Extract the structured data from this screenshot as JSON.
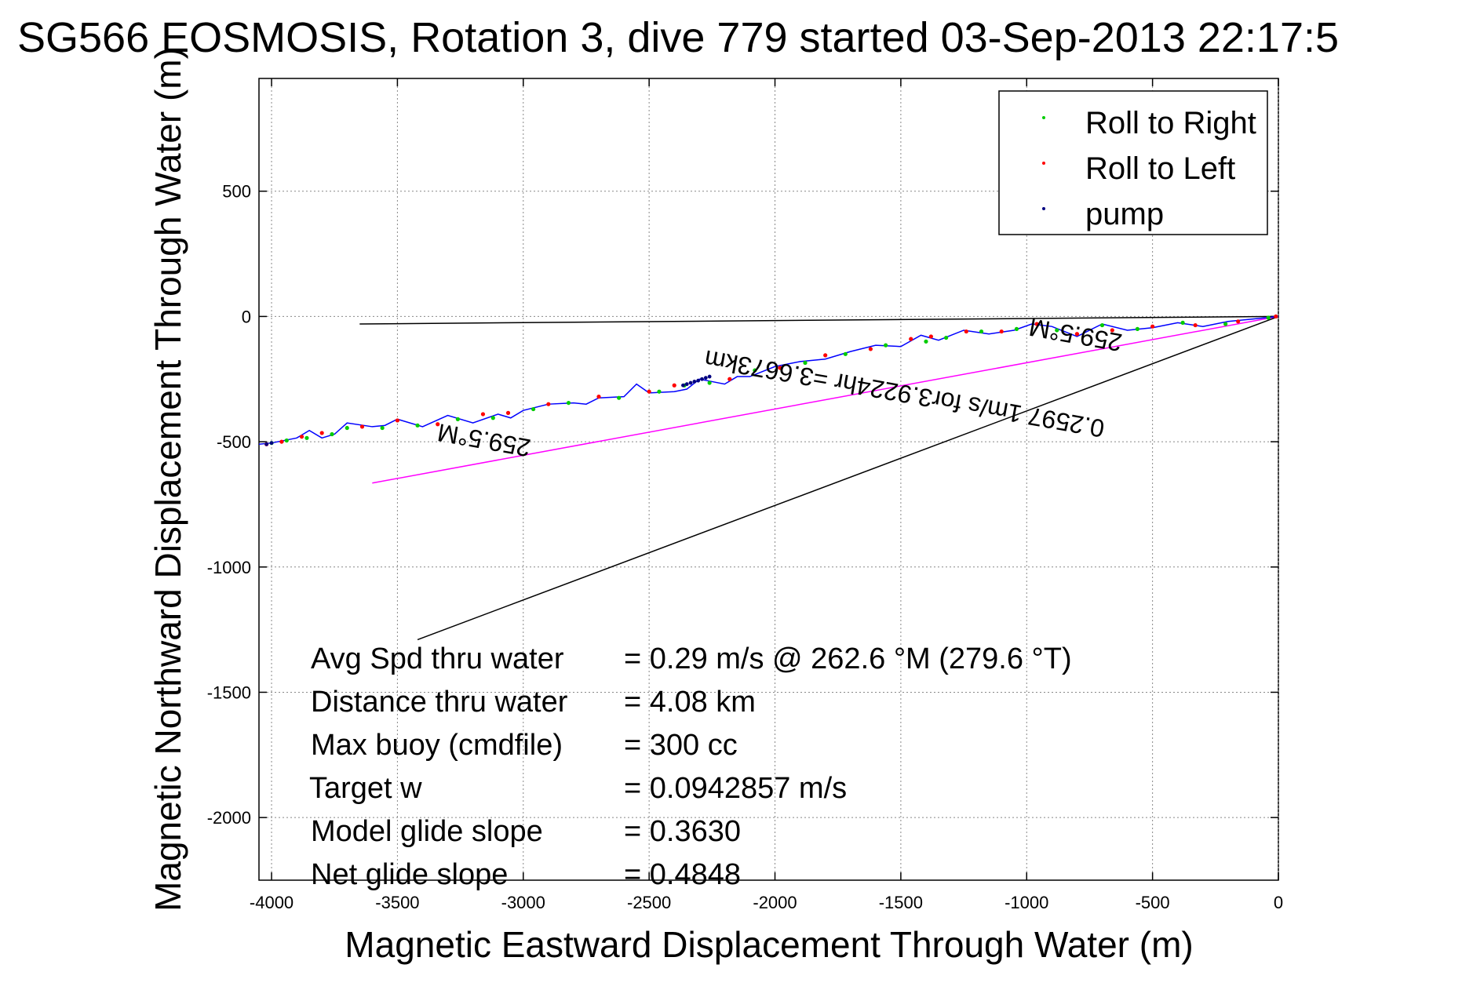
{
  "chart_data": {
    "type": "scatter",
    "title": "SG566 EOSMOSIS, Rotation 3, dive 779 started 03-Sep-2013 22:17:5",
    "xlabel": "Magnetic Eastward Displacement Through Water (m)",
    "ylabel": "Magnetic Northward Displacement Through Water (m)",
    "xlim": [
      -4050,
      0
    ],
    "ylim": [
      -2250,
      950
    ],
    "xticks": [
      -4000,
      -3500,
      -3000,
      -2500,
      -2000,
      -1500,
      -1000,
      -500,
      0
    ],
    "xtick_labels": [
      "-4000",
      "-3500",
      "-3000",
      "-2500",
      "-2000",
      "-1500",
      "-1000",
      "-500",
      "0"
    ],
    "yticks": [
      500,
      0,
      -500,
      -1000,
      -1500,
      -2000
    ],
    "ytick_labels": [
      "500",
      "0",
      "-500",
      "-1000",
      "-1500",
      "-2000"
    ],
    "grid": true,
    "legend": {
      "placement": "top-right",
      "entries": [
        {
          "label": "Roll to Right",
          "color": "#00cc00"
        },
        {
          "label": "Roll to Left",
          "color": "#ff0000"
        },
        {
          "label": "pump",
          "color": "#000080"
        }
      ]
    },
    "track": {
      "color": "#0000ff",
      "x": [
        0,
        -100,
        -200,
        -300,
        -400,
        -500,
        -600,
        -700,
        -800,
        -850,
        -900,
        -980,
        -1050,
        -1150,
        -1250,
        -1350,
        -1420,
        -1500,
        -1600,
        -1700,
        -1800,
        -1900,
        -2000,
        -2100,
        -2150,
        -2200,
        -2250,
        -2300,
        -2350,
        -2400,
        -2500,
        -2550,
        -2600,
        -2700,
        -2750,
        -2800,
        -2900,
        -3000,
        -3050,
        -3100,
        -3200,
        -3300,
        -3400,
        -3500,
        -3550,
        -3600,
        -3700,
        -3750,
        -3800,
        -3850,
        -3900,
        -4000,
        -4050
      ],
      "y": [
        0,
        -10,
        -20,
        -40,
        -25,
        -45,
        -55,
        -30,
        -80,
        -60,
        -40,
        -30,
        -55,
        -70,
        -55,
        -95,
        -75,
        -120,
        -115,
        -140,
        -170,
        -180,
        -200,
        -240,
        -240,
        -270,
        -260,
        -250,
        -290,
        -300,
        -305,
        -270,
        -320,
        -325,
        -350,
        -345,
        -350,
        -375,
        -405,
        -390,
        -425,
        -395,
        -440,
        -410,
        -435,
        -440,
        -425,
        -470,
        -485,
        -455,
        -485,
        -505,
        -510
      ]
    },
    "roll_right": {
      "x": [
        -40,
        -210,
        -380,
        -560,
        -700,
        -880,
        -1040,
        -1180,
        -1320,
        -1400,
        -1560,
        -1720,
        -1880,
        -2080,
        -2260,
        -2360,
        -2460,
        -2620,
        -2820,
        -2960,
        -3120,
        -3260,
        -3420,
        -3560,
        -3700,
        -3760,
        -3860,
        -3940,
        -4000
      ],
      "y": [
        -5,
        -30,
        -25,
        -50,
        -35,
        -55,
        -50,
        -60,
        -85,
        -100,
        -115,
        -150,
        -185,
        -215,
        -265,
        -275,
        -300,
        -325,
        -345,
        -370,
        -405,
        -410,
        -435,
        -445,
        -445,
        -470,
        -485,
        -495,
        -505
      ]
    },
    "roll_left": {
      "x": [
        -10,
        -160,
        -330,
        -500,
        -660,
        -800,
        -960,
        -1100,
        -1240,
        -1380,
        -1460,
        -1620,
        -1800,
        -1980,
        -2180,
        -2400,
        -2500,
        -2700,
        -2900,
        -3060,
        -3160,
        -3340,
        -3500,
        -3640,
        -3800,
        -3880,
        -3960,
        -4020
      ],
      "y": [
        0,
        -20,
        -35,
        -40,
        -55,
        -70,
        -30,
        -60,
        -60,
        -80,
        -90,
        -130,
        -155,
        -205,
        -250,
        -275,
        -300,
        -320,
        -350,
        -385,
        -390,
        -430,
        -415,
        -440,
        -465,
        -480,
        -500,
        -510
      ]
    },
    "pump": {
      "x": [
        -2260,
        -2275,
        -2290,
        -2305,
        -2320,
        -2335,
        -2350,
        -2365,
        -4020,
        -4000
      ],
      "y": [
        -240,
        -245,
        -250,
        -256,
        -260,
        -265,
        -270,
        -275,
        -510,
        -505
      ]
    },
    "lines": [
      {
        "name": "",
        "color": "#000000",
        "x": [
          0,
          -3650
        ],
        "y": [
          0,
          -30
        ]
      },
      {
        "name": "",
        "color": "#ff00ff",
        "x": [
          0,
          -3600
        ],
        "y": [
          0,
          -665
        ]
      },
      {
        "name": "",
        "color": "#000000",
        "x": [
          0,
          -3420
        ],
        "y": [
          0,
          -1290
        ]
      }
    ],
    "annotations": [
      {
        "text": "259.5°M",
        "x": -800,
        "y": -40,
        "rotate": 190
      },
      {
        "text": "0.2597 1m/s for3.9224hr =3.6673km",
        "x": -1480,
        "y": -275,
        "rotate": 190
      },
      {
        "text": "259.5°M",
        "x": -3150,
        "y": -460,
        "rotate": 190
      }
    ],
    "stats": [
      {
        "label": "Avg Spd thru water",
        "value": "=  0.29 m/s @ 262.6 °M (279.6 °T)"
      },
      {
        "label": "Distance thru water",
        "value": "=  4.08 km"
      },
      {
        "label": "Max buoy (cmdfile)",
        "value": "= 300 cc"
      },
      {
        "label": "Target w",
        "value": "= 0.0942857 m/s"
      },
      {
        "label": "Model glide slope",
        "value": "= 0.3630"
      },
      {
        "label": "Net glide slope",
        "value": "= 0.4848"
      }
    ]
  }
}
